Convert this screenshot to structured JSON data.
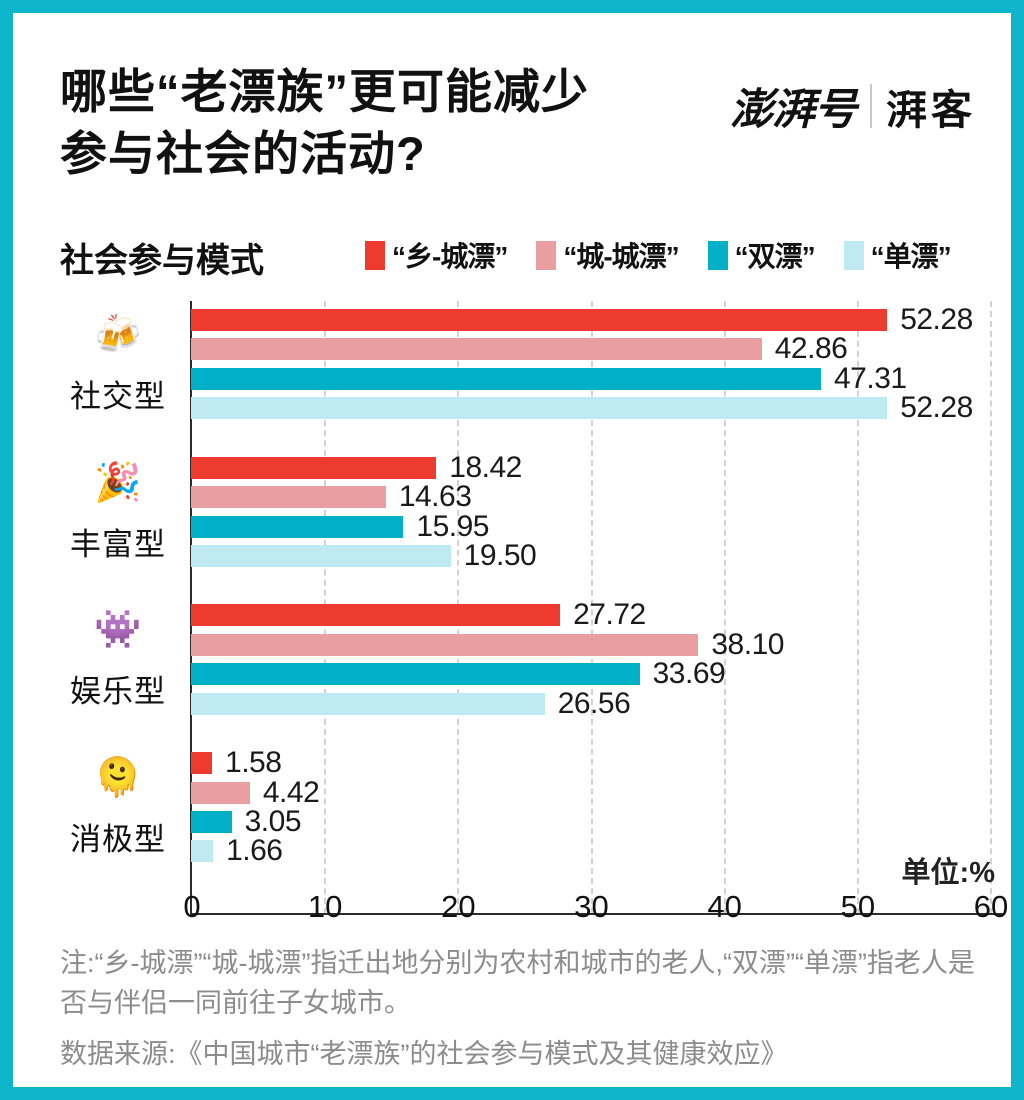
{
  "page": {
    "title_line1": "哪些“老漂族”更可能减少",
    "title_line2": "参与社会的活动?",
    "brand": {
      "name": "澎湃号",
      "sub": "湃客"
    },
    "section_label": "社会参与模式",
    "unit_label": "单位:%"
  },
  "chart_data": {
    "type": "bar",
    "orientation": "horizontal",
    "title": "社会参与模式",
    "unit": "%",
    "xlim": [
      0,
      60
    ],
    "x_ticks": [
      0,
      10,
      20,
      30,
      40,
      50,
      60
    ],
    "grid": "dashed-vertical",
    "legend_position": "top",
    "categories": [
      {
        "emoji": "🍻",
        "emoji_name": "clinking-beer-mugs",
        "label": "社交型"
      },
      {
        "emoji": "🎉",
        "emoji_name": "party-popper",
        "label": "丰富型"
      },
      {
        "emoji": "👾",
        "emoji_name": "alien-monster",
        "label": "娱乐型"
      },
      {
        "emoji": "🫠",
        "emoji_name": "melting-face",
        "label": "消极型"
      }
    ],
    "series": [
      {
        "name": "“乡-城漂”",
        "color": "#ee3b2f",
        "values": [
          52.28,
          18.42,
          27.72,
          1.58
        ]
      },
      {
        "name": "“城-城漂”",
        "color": "#e99fa1",
        "values": [
          42.86,
          14.63,
          38.1,
          4.42
        ]
      },
      {
        "name": "“双漂”",
        "color": "#00afc8",
        "values": [
          47.31,
          15.95,
          33.69,
          3.05
        ]
      },
      {
        "name": "“单漂”",
        "color": "#c0eaf2",
        "values": [
          52.28,
          19.5,
          26.56,
          1.66
        ]
      }
    ]
  },
  "notes": {
    "note": "注:“乡-城漂”“城-城漂”指迁出地分别为农村和城市的老人,“双漂”“单漂”指老人是否与伴侣一同前往子女城市。",
    "source": "数据来源:《中国城市“老漂族”的社会参与模式及其健康效应》"
  },
  "colors": {
    "frame": "#0fb6cb",
    "axis": "#2b2b2b",
    "gridline": "#d2d2d2",
    "note_text": "#8c8c8c",
    "text": "#111111"
  }
}
